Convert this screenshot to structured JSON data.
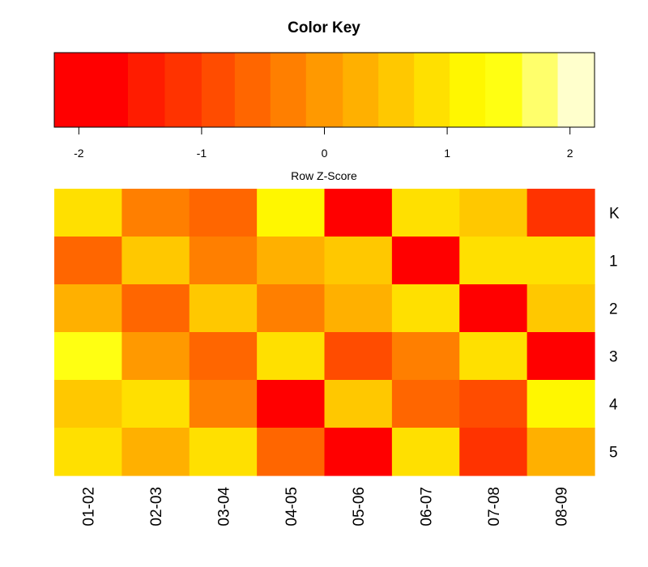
{
  "chart_data": [
    {
      "type": "colorkey",
      "title": "Color Key",
      "xlabel": "Row Z-Score",
      "xlim": [
        -2.2,
        2.2
      ],
      "ticks": [
        "-2",
        "-1",
        "0",
        "1",
        "2"
      ],
      "tick_values": [
        -2,
        -1,
        0,
        1,
        2
      ],
      "colors": [
        "#ff0000",
        "#ff1c00",
        "#ff3300",
        "#ff4c00",
        "#ff6600",
        "#ff7f00",
        "#ff9900",
        "#ffb000",
        "#ffc800",
        "#ffe000",
        "#fff700",
        "#ffff12",
        "#ffff6b",
        "#ffffcc"
      ],
      "breaks": [
        -2.2,
        -1.6,
        -1.3,
        -1.0,
        -0.73,
        -0.44,
        -0.15,
        0.15,
        0.44,
        0.73,
        1.02,
        1.31,
        1.61,
        1.9,
        2.2
      ]
    },
    {
      "type": "heatmap",
      "rows": [
        "K",
        "1",
        "2",
        "3",
        "4",
        "5"
      ],
      "columns": [
        "01-02",
        "02-03",
        "03-04",
        "04-05",
        "05-06",
        "06-07",
        "07-08",
        "08-09"
      ],
      "values": [
        [
          1.0,
          -0.4,
          -0.7,
          1.3,
          -1.8,
          1.0,
          0.6,
          -1.3
        ],
        [
          -0.7,
          0.6,
          -0.4,
          0.3,
          0.6,
          -2.0,
          1.0,
          1.0
        ],
        [
          0.3,
          -0.7,
          0.6,
          -0.4,
          0.3,
          1.0,
          -2.0,
          0.6
        ],
        [
          1.4,
          0.0,
          -0.7,
          1.0,
          -1.0,
          -0.4,
          1.0,
          -1.8
        ],
        [
          0.6,
          1.0,
          -0.4,
          -1.8,
          0.6,
          -0.7,
          -1.0,
          1.3
        ],
        [
          1.0,
          0.3,
          1.0,
          -0.7,
          -1.8,
          1.0,
          -1.3,
          0.3
        ]
      ]
    }
  ]
}
